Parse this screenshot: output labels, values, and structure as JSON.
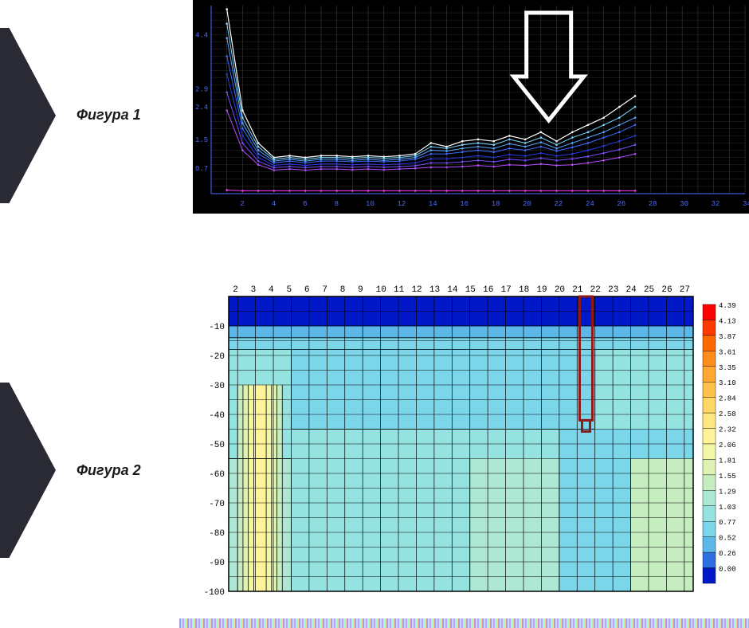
{
  "labels": {
    "fig1": "Фигура 1",
    "fig2": "Фигура 2"
  },
  "chevron_color": "#2a2a34",
  "line_chart": {
    "type": "line",
    "bg": "#000000",
    "grid_color": "#3b3b3b",
    "axis_color": "#4d6bff",
    "x_ticks": [
      2,
      4,
      6,
      8,
      10,
      12,
      14,
      16,
      18,
      20,
      22,
      24,
      26,
      28,
      30,
      32,
      34
    ],
    "y_ticks": [
      0.7,
      1.5,
      2.4,
      2.9,
      4.4
    ],
    "xlim": [
      0,
      34
    ],
    "ylim": [
      0,
      5.2
    ],
    "arrow": {
      "x": 21.5,
      "stroke": "#ffffff",
      "stroke_width": 5
    },
    "series": [
      {
        "color": "#ffffff",
        "width": 1.2,
        "pts": [
          [
            1,
            5.1
          ],
          [
            2,
            2.3
          ],
          [
            3,
            1.4
          ],
          [
            4,
            1.0
          ],
          [
            5,
            1.05
          ],
          [
            6,
            1.0
          ],
          [
            7,
            1.05
          ],
          [
            8,
            1.05
          ],
          [
            9,
            1.02
          ],
          [
            10,
            1.05
          ],
          [
            11,
            1.02
          ],
          [
            12,
            1.05
          ],
          [
            13,
            1.1
          ],
          [
            14,
            1.4
          ],
          [
            15,
            1.3
          ],
          [
            16,
            1.45
          ],
          [
            17,
            1.5
          ],
          [
            18,
            1.45
          ],
          [
            19,
            1.6
          ],
          [
            20,
            1.5
          ],
          [
            21,
            1.7
          ],
          [
            22,
            1.45
          ],
          [
            23,
            1.7
          ],
          [
            24,
            1.9
          ],
          [
            25,
            2.1
          ],
          [
            26,
            2.4
          ],
          [
            27,
            2.7
          ]
        ]
      },
      {
        "color": "#7ad7ff",
        "width": 1,
        "pts": [
          [
            1,
            4.7
          ],
          [
            2,
            2.1
          ],
          [
            3,
            1.3
          ],
          [
            4,
            0.95
          ],
          [
            5,
            1.0
          ],
          [
            6,
            0.95
          ],
          [
            7,
            1.0
          ],
          [
            8,
            1.0
          ],
          [
            9,
            0.98
          ],
          [
            10,
            1.0
          ],
          [
            11,
            0.98
          ],
          [
            12,
            1.0
          ],
          [
            13,
            1.05
          ],
          [
            14,
            1.3
          ],
          [
            15,
            1.25
          ],
          [
            16,
            1.35
          ],
          [
            17,
            1.4
          ],
          [
            18,
            1.35
          ],
          [
            19,
            1.5
          ],
          [
            20,
            1.4
          ],
          [
            21,
            1.55
          ],
          [
            22,
            1.35
          ],
          [
            23,
            1.55
          ],
          [
            24,
            1.7
          ],
          [
            25,
            1.9
          ],
          [
            26,
            2.1
          ],
          [
            27,
            2.4
          ]
        ]
      },
      {
        "color": "#5aa8ff",
        "width": 1,
        "pts": [
          [
            1,
            4.3
          ],
          [
            2,
            1.95
          ],
          [
            3,
            1.2
          ],
          [
            4,
            0.9
          ],
          [
            5,
            0.95
          ],
          [
            6,
            0.9
          ],
          [
            7,
            0.95
          ],
          [
            8,
            0.95
          ],
          [
            9,
            0.92
          ],
          [
            10,
            0.95
          ],
          [
            11,
            0.92
          ],
          [
            12,
            0.95
          ],
          [
            13,
            1.0
          ],
          [
            14,
            1.2
          ],
          [
            15,
            1.18
          ],
          [
            16,
            1.25
          ],
          [
            17,
            1.3
          ],
          [
            18,
            1.25
          ],
          [
            19,
            1.38
          ],
          [
            20,
            1.3
          ],
          [
            21,
            1.42
          ],
          [
            22,
            1.25
          ],
          [
            23,
            1.4
          ],
          [
            24,
            1.55
          ],
          [
            25,
            1.7
          ],
          [
            26,
            1.9
          ],
          [
            27,
            2.1
          ]
        ]
      },
      {
        "color": "#3d6bff",
        "width": 1,
        "pts": [
          [
            1,
            3.8
          ],
          [
            2,
            1.8
          ],
          [
            3,
            1.1
          ],
          [
            4,
            0.85
          ],
          [
            5,
            0.9
          ],
          [
            6,
            0.85
          ],
          [
            7,
            0.9
          ],
          [
            8,
            0.9
          ],
          [
            9,
            0.88
          ],
          [
            10,
            0.9
          ],
          [
            11,
            0.88
          ],
          [
            12,
            0.9
          ],
          [
            13,
            0.95
          ],
          [
            14,
            1.1
          ],
          [
            15,
            1.1
          ],
          [
            16,
            1.15
          ],
          [
            17,
            1.2
          ],
          [
            18,
            1.15
          ],
          [
            19,
            1.25
          ],
          [
            20,
            1.2
          ],
          [
            21,
            1.3
          ],
          [
            22,
            1.18
          ],
          [
            23,
            1.28
          ],
          [
            24,
            1.4
          ],
          [
            25,
            1.55
          ],
          [
            26,
            1.7
          ],
          [
            27,
            1.9
          ]
        ]
      },
      {
        "color": "#2a3ae0",
        "width": 1,
        "pts": [
          [
            1,
            3.3
          ],
          [
            2,
            1.6
          ],
          [
            3,
            1.0
          ],
          [
            4,
            0.78
          ],
          [
            5,
            0.82
          ],
          [
            6,
            0.78
          ],
          [
            7,
            0.82
          ],
          [
            8,
            0.82
          ],
          [
            9,
            0.8
          ],
          [
            10,
            0.82
          ],
          [
            11,
            0.8
          ],
          [
            12,
            0.82
          ],
          [
            13,
            0.85
          ],
          [
            14,
            0.96
          ],
          [
            15,
            0.96
          ],
          [
            16,
            1.0
          ],
          [
            17,
            1.05
          ],
          [
            18,
            1.0
          ],
          [
            19,
            1.08
          ],
          [
            20,
            1.04
          ],
          [
            21,
            1.12
          ],
          [
            22,
            1.04
          ],
          [
            23,
            1.1
          ],
          [
            24,
            1.2
          ],
          [
            25,
            1.32
          ],
          [
            26,
            1.45
          ],
          [
            27,
            1.6
          ]
        ]
      },
      {
        "color": "#7a4dff",
        "width": 1,
        "pts": [
          [
            1,
            2.8
          ],
          [
            2,
            1.4
          ],
          [
            3,
            0.9
          ],
          [
            4,
            0.72
          ],
          [
            5,
            0.75
          ],
          [
            6,
            0.72
          ],
          [
            7,
            0.75
          ],
          [
            8,
            0.75
          ],
          [
            9,
            0.73
          ],
          [
            10,
            0.75
          ],
          [
            11,
            0.73
          ],
          [
            12,
            0.75
          ],
          [
            13,
            0.77
          ],
          [
            14,
            0.85
          ],
          [
            15,
            0.85
          ],
          [
            16,
            0.88
          ],
          [
            17,
            0.92
          ],
          [
            18,
            0.88
          ],
          [
            19,
            0.95
          ],
          [
            20,
            0.92
          ],
          [
            21,
            0.98
          ],
          [
            22,
            0.92
          ],
          [
            23,
            0.96
          ],
          [
            24,
            1.03
          ],
          [
            25,
            1.12
          ],
          [
            26,
            1.22
          ],
          [
            27,
            1.35
          ]
        ]
      },
      {
        "color": "#b84dff",
        "width": 1,
        "pts": [
          [
            1,
            2.3
          ],
          [
            2,
            1.2
          ],
          [
            3,
            0.8
          ],
          [
            4,
            0.65
          ],
          [
            5,
            0.68
          ],
          [
            6,
            0.65
          ],
          [
            7,
            0.68
          ],
          [
            8,
            0.68
          ],
          [
            9,
            0.66
          ],
          [
            10,
            0.68
          ],
          [
            11,
            0.66
          ],
          [
            12,
            0.68
          ],
          [
            13,
            0.7
          ],
          [
            14,
            0.73
          ],
          [
            15,
            0.73
          ],
          [
            16,
            0.75
          ],
          [
            17,
            0.78
          ],
          [
            18,
            0.75
          ],
          [
            19,
            0.8
          ],
          [
            20,
            0.78
          ],
          [
            21,
            0.82
          ],
          [
            22,
            0.78
          ],
          [
            23,
            0.8
          ],
          [
            24,
            0.85
          ],
          [
            25,
            0.92
          ],
          [
            26,
            1.0
          ],
          [
            27,
            1.1
          ]
        ]
      },
      {
        "color": "#ff3dff",
        "width": 1,
        "pts": [
          [
            1,
            0.1
          ],
          [
            2,
            0.08
          ],
          [
            3,
            0.08
          ],
          [
            4,
            0.08
          ],
          [
            5,
            0.08
          ],
          [
            6,
            0.08
          ],
          [
            7,
            0.08
          ],
          [
            8,
            0.08
          ],
          [
            9,
            0.08
          ],
          [
            10,
            0.08
          ],
          [
            11,
            0.08
          ],
          [
            12,
            0.08
          ],
          [
            13,
            0.08
          ],
          [
            14,
            0.08
          ],
          [
            15,
            0.08
          ],
          [
            16,
            0.08
          ],
          [
            17,
            0.08
          ],
          [
            18,
            0.08
          ],
          [
            19,
            0.08
          ],
          [
            20,
            0.08
          ],
          [
            21,
            0.08
          ],
          [
            22,
            0.08
          ],
          [
            23,
            0.08
          ],
          [
            24,
            0.08
          ],
          [
            25,
            0.08
          ],
          [
            26,
            0.08
          ],
          [
            27,
            0.08
          ]
        ]
      }
    ]
  },
  "heatmap": {
    "type": "heatmap",
    "x_ticks": [
      2,
      3,
      4,
      5,
      6,
      7,
      8,
      9,
      10,
      11,
      12,
      13,
      14,
      15,
      16,
      17,
      18,
      19,
      20,
      21,
      22,
      23,
      24,
      25,
      26,
      27
    ],
    "y_ticks": [
      -10,
      -20,
      -30,
      -40,
      -50,
      -60,
      -70,
      -80,
      -90,
      -100
    ],
    "xlim": [
      1.5,
      27.5
    ],
    "ylim": [
      -100,
      0
    ],
    "grid_color": "#000000",
    "marker": {
      "x": 21.5,
      "y_top": 0,
      "y_bot": -42,
      "stroke": "#8b1a1a",
      "stroke_width": 3
    },
    "legend_values": [
      4.39,
      4.13,
      3.87,
      3.61,
      3.35,
      3.1,
      2.84,
      2.58,
      2.32,
      2.06,
      1.81,
      1.55,
      1.29,
      1.03,
      0.77,
      0.52,
      0.26,
      0.0
    ],
    "legend_colors": [
      "#ff0000",
      "#ff3a00",
      "#ff6a00",
      "#ff8c1a",
      "#ffa733",
      "#ffc04d",
      "#ffd766",
      "#ffe880",
      "#fff399",
      "#f2f7a6",
      "#dff2b3",
      "#c6edc0",
      "#aee8d4",
      "#95e3e1",
      "#7cd6ea",
      "#5cb8e8",
      "#2e6fe0",
      "#0018c8"
    ],
    "bands": [
      {
        "color": "#0018c8",
        "rects": [
          [
            1.5,
            0,
            27.5,
            -10
          ]
        ]
      },
      {
        "color": "#5cb8e8",
        "rects": [
          [
            1.5,
            -10,
            27.5,
            -14
          ]
        ]
      },
      {
        "color": "#7cd6ea",
        "rects": [
          [
            1.5,
            -14,
            27.5,
            -18
          ],
          [
            5,
            -18,
            22,
            -45
          ],
          [
            20,
            -45,
            27.5,
            -100
          ]
        ]
      },
      {
        "color": "#95e3e1",
        "rects": [
          [
            1.5,
            -18,
            5,
            -55
          ],
          [
            5,
            -45,
            20,
            -100
          ],
          [
            22,
            -18,
            27.5,
            -45
          ]
        ]
      },
      {
        "color": "#aee8d4",
        "rects": [
          [
            1.5,
            -55,
            5,
            -100
          ],
          [
            15,
            -55,
            20,
            -100
          ]
        ]
      },
      {
        "color": "#c6edc0",
        "rects": [
          [
            2,
            -30,
            4.5,
            -100
          ],
          [
            24,
            -55,
            27.5,
            -100
          ]
        ]
      },
      {
        "color": "#dff2b3",
        "rects": [
          [
            2.3,
            -30,
            4.2,
            -100
          ]
        ]
      },
      {
        "color": "#f2f7a6",
        "rects": [
          [
            2.6,
            -30,
            3.9,
            -100
          ]
        ]
      },
      {
        "color": "#fff399",
        "rects": [
          [
            2.9,
            -30,
            3.6,
            -100
          ]
        ]
      }
    ],
    "contours": [
      [
        [
          1.5,
          -10
        ],
        [
          27.5,
          -10
        ]
      ],
      [
        [
          1.5,
          -14
        ],
        [
          27.5,
          -14
        ]
      ],
      [
        [
          1.5,
          -18
        ],
        [
          27.5,
          -18
        ]
      ],
      [
        [
          5,
          -18
        ],
        [
          5,
          -45
        ],
        [
          22,
          -45
        ],
        [
          22,
          -18
        ]
      ],
      [
        [
          1.5,
          -55
        ],
        [
          5,
          -55
        ],
        [
          5,
          -100
        ]
      ],
      [
        [
          15,
          -55
        ],
        [
          15,
          -100
        ]
      ],
      [
        [
          20,
          -45
        ],
        [
          20,
          -100
        ]
      ],
      [
        [
          24,
          -55
        ],
        [
          24,
          -100
        ]
      ],
      [
        [
          2,
          -30
        ],
        [
          2,
          -100
        ]
      ],
      [
        [
          4.5,
          -30
        ],
        [
          4.5,
          -100
        ]
      ],
      [
        [
          2.3,
          -30
        ],
        [
          2.3,
          -100
        ]
      ],
      [
        [
          4.2,
          -30
        ],
        [
          4.2,
          -100
        ]
      ],
      [
        [
          2.6,
          -30
        ],
        [
          2.6,
          -100
        ]
      ],
      [
        [
          3.9,
          -30
        ],
        [
          3.9,
          -100
        ]
      ],
      [
        [
          2.9,
          -30
        ],
        [
          2.9,
          -100
        ]
      ],
      [
        [
          3.6,
          -30
        ],
        [
          3.6,
          -100
        ]
      ]
    ]
  }
}
